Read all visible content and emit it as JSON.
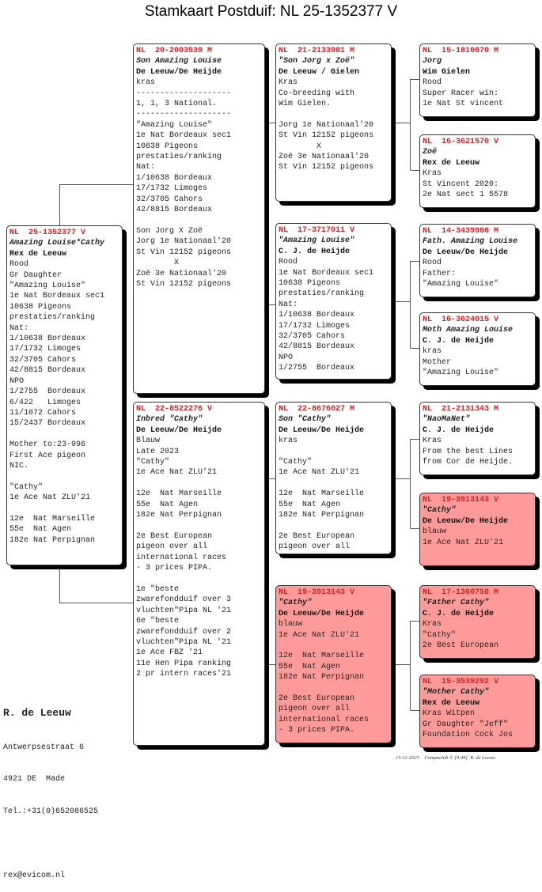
{
  "title": "Stamkaart Postduif: NL  25-1352377 V",
  "colors": {
    "ring": "#d42020",
    "highlight": "#ff9a9a"
  },
  "boxes": [
    {
      "ring": "NL  25-1352377 V",
      "name": "Amazing Louise*Cathy",
      "owner": "Rex de Leeuw",
      "pink": false,
      "lines": [
        "Rood",
        "Gr Daughter",
        "\"Amazing Louise\"",
        "1e Nat Bordeaux sec1",
        "10638 Pigeons",
        "prestaties/ranking",
        "Nat:",
        "1/10638 Bordeaux",
        "17/1732 Limoges",
        "32/3705 Cahors",
        "42/8815 Bordeaux",
        "NPO",
        "1/2755  Bordeaux",
        "6/422   Limoges",
        "11/1072 Cahors",
        "15/2437 Bordeaux",
        "",
        "Mother to:23-996",
        "First Ace pigeon",
        "NIC.",
        "",
        "\"Cathy\"",
        "1e Ace Nat ZLU'21",
        "",
        "12e  Nat Marseille",
        "55e  Nat Agen",
        "182e Nat Perpignan"
      ]
    },
    {
      "ring": "NL  20-2003539 M",
      "name": "Son Amazing Louise",
      "owner": "De Leeuw/De Heijde",
      "pink": false,
      "lines": [
        "kras",
        "--------------------",
        "1, 1, 3 National.",
        "--------------------",
        "\"Amazing Louise\"",
        "1e Nat Bordeaux sec1",
        "10638 Pigeons",
        "prestaties/ranking",
        "Nat:",
        "1/10638 Bordeaux",
        "17/1732 Limoges",
        "32/3705 Cahors",
        "42/8815 Bordeaux",
        "",
        "Son Jorg X Zoë",
        "Jorg 1e Nationaal'20",
        "St Vin 12152 pigeons",
        "        X",
        "Zoë 3e Nationaal'20",
        "St Vin 12152 pigeons"
      ]
    },
    {
      "ring": "NL  22-8522276 V",
      "name": "Inbred \"Cathy\"",
      "owner": "De Leeuw/De Heijde",
      "pink": false,
      "lines": [
        "Blauw",
        "Late 2023",
        "\"Cathy\"",
        "1e Ace Nat ZLU'21",
        "",
        "12e  Nat Marseille",
        "55e  Nat Agen",
        "182e Nat Perpignan",
        "",
        "2e Best European",
        "pigeon over all",
        "international races",
        "- 3 prices PIPA.",
        "",
        "1e \"beste",
        "zwarefondduif over 3",
        "vluchten\"Pipa NL '21",
        "6e \"beste",
        "zwarefondduif over 2",
        "vluchten\"Pipa NL '21",
        "1e Ace FBZ '21",
        "11e Hen Pipa ranking",
        "2 pr intern races'21"
      ]
    },
    {
      "ring": "NL  21-2133981 M",
      "name": "\"Son Jorg x Zoë\"",
      "owner": "De Leeuw / Gielen",
      "pink": false,
      "lines": [
        "Kras",
        "Co-breeding with",
        "Wim Gielen.",
        "",
        "Jorg 1e Nationaal'20",
        "St Vin 12152 pigeons",
        "        X",
        "Zoë 3e Nationaal'20",
        "St Vin 12152 pigeons"
      ]
    },
    {
      "ring": "NL  17-3717011 V",
      "name": "\"Amazing Louise\"",
      "owner": "C. J. de Heijde",
      "pink": false,
      "lines": [
        "Rood",
        "1e Nat Bordeaux sec1",
        "10638 Pigeons",
        "prestaties/ranking",
        "Nat:",
        "1/10638 Bordeaux",
        "17/1732 Limoges",
        "32/3705 Cahors",
        "42/8815 Bordeaux",
        "NPO",
        "1/2755  Bordeaux"
      ]
    },
    {
      "ring": "NL  22-8676027 M",
      "name": "Son \"Cathy\"",
      "owner": "De Leeuw/De Heijde",
      "pink": false,
      "lines": [
        "kras",
        "",
        "\"Cathy\"",
        "1e Ace Nat ZLU'21",
        "",
        "12e  Nat Marseille",
        "55e  Nat Agen",
        "182e Nat Perpignan",
        "",
        "2e Best European",
        "pigeon over all"
      ]
    },
    {
      "ring": "NL  19-3913143 V",
      "name": "\"Cathy\"",
      "owner": "De Leeuw/De Heijde",
      "pink": true,
      "lines": [
        "blauw",
        "1e Ace Nat ZLU'21",
        "",
        "12e  Nat Marseille",
        "55e  Nat Agen",
        "182e Nat Perpignan",
        "",
        "2e Best European",
        "pigeon over all",
        "international races",
        "- 3 prices PIPA."
      ]
    },
    {
      "ring": "NL  15-1810670 M",
      "name": "Jorg",
      "owner": "Wim Gielen",
      "pink": false,
      "lines": [
        "Rood",
        "Super Racer win:",
        "1e Nat St vincent"
      ]
    },
    {
      "ring": "NL  16-3621570 V",
      "name": "Zoë",
      "owner": "Rex de Leeuw",
      "pink": false,
      "lines": [
        "Kras",
        "St Vincent 2020:",
        "2e Nat sect 1 5578"
      ]
    },
    {
      "ring": "NL  14-3439966 M",
      "name": "Fath. Amazing Louise",
      "owner": "De Leeuw/De Heijde",
      "pink": false,
      "lines": [
        "Rood",
        "Father:",
        "\"Amazing Louise\""
      ]
    },
    {
      "ring": "NL  16-3624015 V",
      "name": "Moth Amazing Louise",
      "owner": "C. J. de Heijde",
      "pink": false,
      "lines": [
        "kras",
        "Mother",
        "\"Amazing Louise\""
      ]
    },
    {
      "ring": "NL  21-2131343 M",
      "name": "\"NaoMaNet\"",
      "owner": "C. J. de Heijde",
      "pink": false,
      "lines": [
        "Kras",
        "From the best Lines",
        "from Cor de Heijde."
      ]
    },
    {
      "ring": "NL  19-3913143 V",
      "name": "\"Cathy\"",
      "owner": "De Leeuw/De Heijde",
      "pink": true,
      "lines": [
        "blauw",
        "1e Ace Nat ZLU'21"
      ]
    },
    {
      "ring": "NL  17-1360758 M",
      "name": "\"Father Cathy\"",
      "owner": "C. J. de Heijde",
      "pink": true,
      "lines": [
        "Kras",
        "\"Cathy\"",
        "2e Best European"
      ]
    },
    {
      "ring": "NL  15-3539292 V",
      "name": "\"Mother Cathy\"",
      "owner": "Rex de Leeuw",
      "pink": true,
      "lines": [
        "Kras Witpen",
        "Gr Daughter \"Jeff\"",
        "Foundation Cock Jos"
      ]
    }
  ],
  "breeder": {
    "name": "R. de Leeuw",
    "street": "Antwerpsestraat 6",
    "city": "4921 DE  Made",
    "phone": "Tel.:+31(0)652086525",
    "email": "rex@evicom.nl"
  },
  "footer": {
    "date": "15-11-2025",
    "software": "Compuclub © [9.49]",
    "author": "R. de Leeuw"
  }
}
